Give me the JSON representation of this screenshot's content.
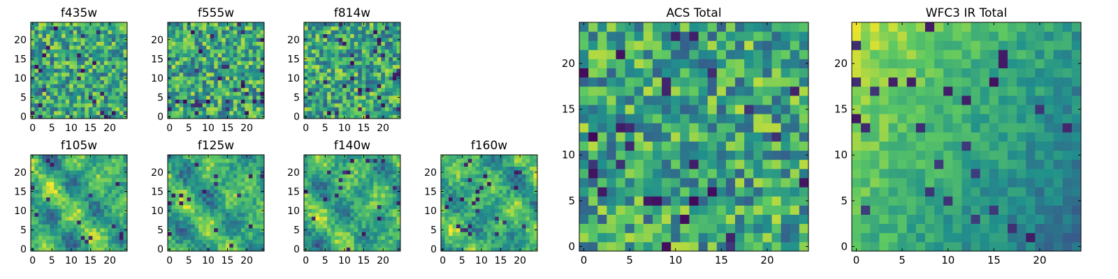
{
  "figure": {
    "colormap": "viridis",
    "colormap_stops": [
      "#440154",
      "#3b528b",
      "#21918c",
      "#5ec962",
      "#fde725"
    ],
    "axes_color": "#000000"
  },
  "chart_data": [
    {
      "type": "heatmap",
      "title": "f435w",
      "grid_size": 25,
      "x_ticks": [
        "0",
        "5",
        "10",
        "15",
        "20"
      ],
      "y_ticks": [
        "0",
        "5",
        "10",
        "15",
        "20"
      ],
      "xlim": [
        -0.5,
        24.5
      ],
      "ylim": [
        -0.5,
        24.5
      ],
      "value_range": [
        0,
        1
      ],
      "texture": "pixel noise",
      "grid": false
    },
    {
      "type": "heatmap",
      "title": "f555w",
      "grid_size": 25,
      "x_ticks": [
        "0",
        "5",
        "10",
        "15",
        "20"
      ],
      "y_ticks": [
        "0",
        "5",
        "10",
        "15",
        "20"
      ],
      "xlim": [
        -0.5,
        24.5
      ],
      "ylim": [
        -0.5,
        24.5
      ],
      "value_range": [
        0,
        1
      ],
      "texture": "pixel noise",
      "grid": false
    },
    {
      "type": "heatmap",
      "title": "f814w",
      "grid_size": 25,
      "x_ticks": [
        "0",
        "5",
        "10",
        "15",
        "20"
      ],
      "y_ticks": [
        "0",
        "5",
        "10",
        "15",
        "20"
      ],
      "xlim": [
        -0.5,
        24.5
      ],
      "ylim": [
        -0.5,
        24.5
      ],
      "value_range": [
        0,
        1
      ],
      "texture": "pixel noise",
      "grid": false
    },
    {
      "type": "heatmap",
      "title": "f105w",
      "grid_size": 25,
      "x_ticks": [
        "0",
        "5",
        "10",
        "15",
        "20"
      ],
      "y_ticks": [
        "0",
        "5",
        "10",
        "15",
        "20"
      ],
      "xlim": [
        -0.5,
        24.5
      ],
      "ylim": [
        -0.5,
        24.5
      ],
      "value_range": [
        0,
        1
      ],
      "texture": "smooth blobs",
      "grid": false
    },
    {
      "type": "heatmap",
      "title": "f125w",
      "grid_size": 25,
      "x_ticks": [
        "0",
        "5",
        "10",
        "15",
        "20"
      ],
      "y_ticks": [
        "0",
        "5",
        "10",
        "15",
        "20"
      ],
      "xlim": [
        -0.5,
        24.5
      ],
      "ylim": [
        -0.5,
        24.5
      ],
      "value_range": [
        0,
        1
      ],
      "texture": "smooth blobs",
      "grid": false
    },
    {
      "type": "heatmap",
      "title": "f140w",
      "grid_size": 25,
      "x_ticks": [
        "0",
        "5",
        "10",
        "15",
        "20"
      ],
      "y_ticks": [
        "0",
        "5",
        "10",
        "15",
        "20"
      ],
      "xlim": [
        -0.5,
        24.5
      ],
      "ylim": [
        -0.5,
        24.5
      ],
      "value_range": [
        0,
        1
      ],
      "texture": "smooth blobs",
      "grid": false
    },
    {
      "type": "heatmap",
      "title": "f160w",
      "grid_size": 25,
      "x_ticks": [
        "0",
        "5",
        "10",
        "15",
        "20"
      ],
      "y_ticks": [
        "0",
        "5",
        "10",
        "15",
        "20"
      ],
      "xlim": [
        -0.5,
        24.5
      ],
      "ylim": [
        -0.5,
        24.5
      ],
      "value_range": [
        0,
        1
      ],
      "texture": "smooth blobs",
      "grid": false
    },
    {
      "type": "heatmap",
      "title": "ACS Total",
      "grid_size": 25,
      "x_ticks": [
        "0",
        "5",
        "10",
        "15",
        "20"
      ],
      "y_ticks": [
        "0",
        "5",
        "10",
        "15",
        "20"
      ],
      "xlim": [
        -0.5,
        24.5
      ],
      "ylim": [
        -0.5,
        24.5
      ],
      "value_range": [
        0,
        1
      ],
      "texture": "pixel noise",
      "grid": false
    },
    {
      "type": "heatmap",
      "title": "WFC3 IR Total",
      "grid_size": 25,
      "x_ticks": [
        "0",
        "5",
        "10",
        "15",
        "20"
      ],
      "y_ticks": [
        "0",
        "5",
        "10",
        "15",
        "20"
      ],
      "xlim": [
        -0.5,
        24.5
      ],
      "ylim": [
        -0.5,
        24.5
      ],
      "value_range": [
        0,
        1
      ],
      "texture": "smooth gradient, bright upper-left",
      "grid": false
    }
  ]
}
